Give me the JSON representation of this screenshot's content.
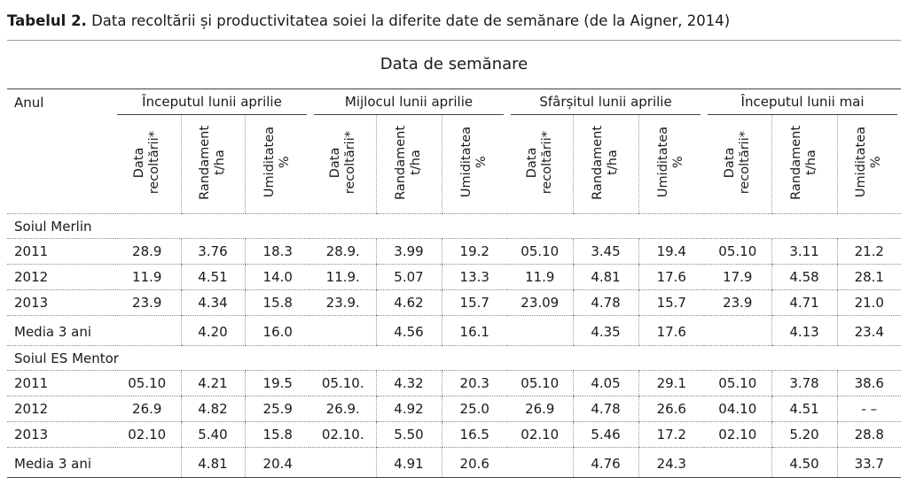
{
  "caption": {
    "bold": "Tabelul 2.",
    "text": " Data recoltării și productivitatea soiei la diferite date de semănare (de la Aigner, 2014)"
  },
  "supertitle": "Data de semănare",
  "year_header": "Anul",
  "groups": [
    "Începutul lunii aprilie",
    "Mijlocul lunii aprilie",
    "Sfârșitul lunii aprilie",
    "Începutul lunii mai"
  ],
  "subcols": [
    {
      "line1": "Data",
      "line2": "recoltării*"
    },
    {
      "line1": "Randament",
      "line2": "t/ha"
    },
    {
      "line1": "Umiditatea",
      "line2": "%"
    }
  ],
  "sections": [
    {
      "title": "Soiul Merlin",
      "rows": [
        {
          "label": "2011",
          "values": [
            "28.9",
            "3.76",
            "18.3",
            "28.9.",
            "3.99",
            "19.2",
            "05.10",
            "3.45",
            "19.4",
            "05.10",
            "3.11",
            "21.2"
          ]
        },
        {
          "label": "2012",
          "values": [
            "11.9",
            "4.51",
            "14.0",
            "11.9.",
            "5.07",
            "13.3",
            "11.9",
            "4.81",
            "17.6",
            "17.9",
            "4.58",
            "28.1"
          ]
        },
        {
          "label": "2013",
          "values": [
            "23.9",
            "4.34",
            "15.8",
            "23.9.",
            "4.62",
            "15.7",
            "23.09",
            "4.78",
            "15.7",
            "23.9",
            "4.71",
            "21.0"
          ]
        },
        {
          "label": "Media 3 ani",
          "media": true,
          "values": [
            "",
            "4.20",
            "16.0",
            "",
            "4.56",
            "16.1",
            "",
            "4.35",
            "17.6",
            "",
            "4.13",
            "23.4"
          ]
        }
      ]
    },
    {
      "title": "Soiul ES Mentor",
      "rows": [
        {
          "label": "2011",
          "values": [
            "05.10",
            "4.21",
            "19.5",
            "05.10.",
            "4.32",
            "20.3",
            "05.10",
            "4.05",
            "29.1",
            "05.10",
            "3.78",
            "38.6"
          ]
        },
        {
          "label": "2012",
          "values": [
            "26.9",
            "4.82",
            "25.9",
            "26.9.",
            "4.92",
            "25.0",
            "26.9",
            "4.78",
            "26.6",
            "04.10",
            "4.51",
            "- –"
          ]
        },
        {
          "label": "2013",
          "values": [
            "02.10",
            "5.40",
            "15.8",
            "02.10.",
            "5.50",
            "16.5",
            "02.10",
            "5.46",
            "17.2",
            "02.10",
            "5.20",
            "28.8"
          ]
        },
        {
          "label": "Media 3 ani",
          "media": true,
          "values": [
            "",
            "4.81",
            "20.4",
            "",
            "4.91",
            "20.6",
            "",
            "4.76",
            "24.3",
            "",
            "4.50",
            "33.7"
          ]
        }
      ]
    }
  ]
}
